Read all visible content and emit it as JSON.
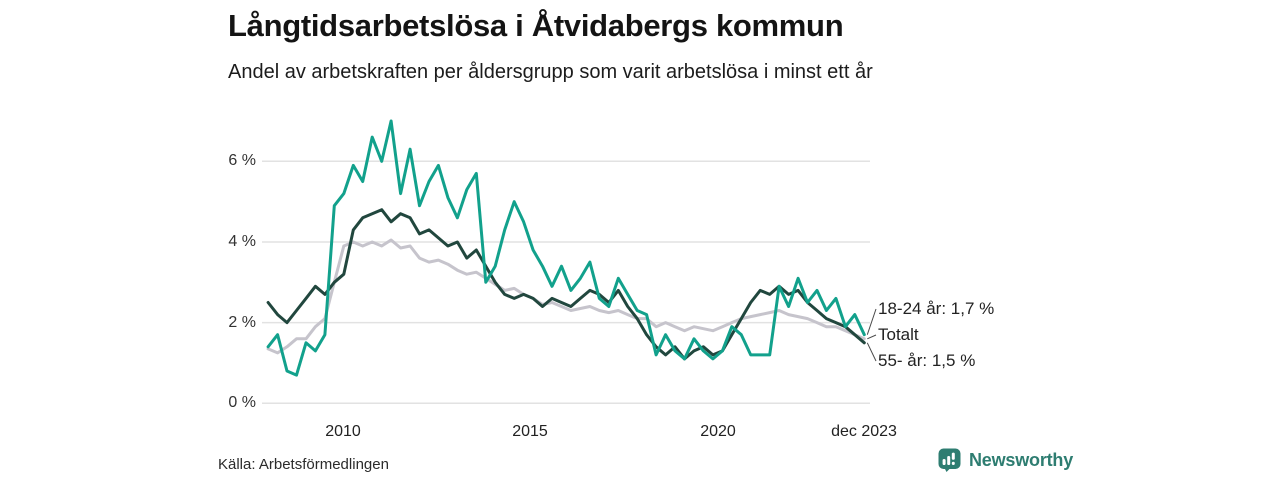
{
  "header": {
    "title": "Långtidsarbetslösa i Åtvidabergs kommun",
    "subtitle": "Andel av arbetskraften per åldersgrupp som varit arbetslösa i minst ett år"
  },
  "footer": {
    "source": "Källa: Arbetsförmedlingen",
    "brand": "Newsworthy"
  },
  "colors": {
    "accent_teal": "#12A18C",
    "dark_green": "#21473E",
    "neutral_gray": "#C6C4CC",
    "gridline": "#E2E2E2",
    "connector": "#4a4a4a",
    "brand_teal": "#2E7D71",
    "text_dark": "#141414"
  },
  "chart_data": {
    "type": "line",
    "title": "Långtidsarbetslösa i Åtvidabergs kommun",
    "subtitle": "Andel av arbetskraften per åldersgrupp som varit arbetslösa i minst ett år",
    "unit": "%",
    "x_start": 2008.0,
    "x_end": 2023.92,
    "ylim": [
      0,
      7.4
    ],
    "grid": "horizontal",
    "yticks": [
      {
        "value": 0,
        "label": "0 %"
      },
      {
        "value": 2,
        "label": "2 %"
      },
      {
        "value": 4,
        "label": "4 %"
      },
      {
        "value": 6,
        "label": "6 %"
      }
    ],
    "xticks": [
      {
        "t": 2010,
        "label": "2010"
      },
      {
        "t": 2015,
        "label": "2015"
      },
      {
        "t": 2020,
        "label": "2020"
      },
      {
        "t": 2023.92,
        "label": "dec 2023"
      }
    ],
    "series": [
      {
        "name": "Totalt",
        "color": "#C6C4CC",
        "end_value": 1.6,
        "values": [
          1.35,
          1.25,
          1.4,
          1.6,
          1.6,
          1.9,
          2.1,
          3.0,
          3.9,
          4.0,
          3.9,
          4.0,
          3.9,
          4.05,
          3.85,
          3.9,
          3.6,
          3.5,
          3.55,
          3.45,
          3.3,
          3.2,
          3.25,
          3.1,
          2.95,
          2.8,
          2.85,
          2.7,
          2.6,
          2.45,
          2.5,
          2.4,
          2.3,
          2.35,
          2.4,
          2.3,
          2.25,
          2.3,
          2.2,
          2.1,
          2.1,
          1.9,
          2.0,
          1.9,
          1.8,
          1.9,
          1.85,
          1.8,
          1.9,
          2.0,
          2.1,
          2.15,
          2.2,
          2.25,
          2.3,
          2.2,
          2.15,
          2.1,
          2.0,
          1.9,
          1.9,
          1.8,
          1.7,
          1.6
        ]
      },
      {
        "name": "55- år",
        "color": "#21473E",
        "end_value": 1.5,
        "values": [
          2.5,
          2.2,
          2.0,
          2.3,
          2.6,
          2.9,
          2.7,
          3.0,
          3.2,
          4.3,
          4.6,
          4.7,
          4.8,
          4.5,
          4.7,
          4.6,
          4.2,
          4.3,
          4.1,
          3.9,
          4.0,
          3.6,
          3.8,
          3.4,
          3.0,
          2.7,
          2.6,
          2.7,
          2.6,
          2.4,
          2.6,
          2.5,
          2.4,
          2.6,
          2.8,
          2.7,
          2.5,
          2.8,
          2.4,
          2.1,
          1.7,
          1.4,
          1.2,
          1.4,
          1.1,
          1.3,
          1.4,
          1.2,
          1.3,
          1.7,
          2.1,
          2.5,
          2.8,
          2.7,
          2.9,
          2.7,
          2.8,
          2.5,
          2.3,
          2.1,
          2.0,
          1.9,
          1.7,
          1.5
        ]
      },
      {
        "name": "18-24 år",
        "color": "#12A18C",
        "end_value": 1.7,
        "values": [
          1.4,
          1.7,
          0.8,
          0.7,
          1.5,
          1.3,
          1.7,
          4.9,
          5.2,
          5.9,
          5.5,
          6.6,
          6.0,
          7.0,
          5.2,
          6.3,
          4.9,
          5.5,
          5.9,
          5.1,
          4.6,
          5.3,
          5.7,
          3.0,
          3.4,
          4.3,
          5.0,
          4.5,
          3.8,
          3.4,
          2.9,
          3.4,
          2.8,
          3.1,
          3.5,
          2.6,
          2.4,
          3.1,
          2.7,
          2.3,
          2.2,
          1.2,
          1.7,
          1.3,
          1.1,
          1.6,
          1.3,
          1.1,
          1.3,
          1.9,
          1.7,
          1.2,
          1.2,
          1.2,
          2.9,
          2.4,
          3.1,
          2.5,
          2.8,
          2.3,
          2.6,
          1.9,
          2.2,
          1.7
        ]
      }
    ],
    "annotations": [
      {
        "text": "18-24 år: 1,7 %",
        "series": 2
      },
      {
        "text": "Totalt",
        "series": 0
      },
      {
        "text": "55- år: 1,5 %",
        "series": 1
      }
    ]
  }
}
